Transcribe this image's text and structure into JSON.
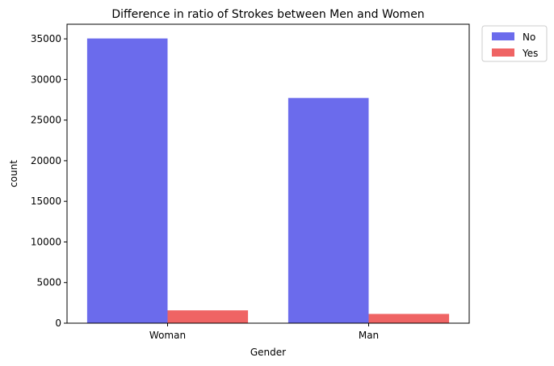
{
  "chart_data": {
    "type": "bar",
    "title": "Difference in ratio of Strokes between Men and Women",
    "xlabel": "Gender",
    "ylabel": "count",
    "categories": [
      "Woman",
      "Man"
    ],
    "series": [
      {
        "name": "No",
        "values": [
          35050,
          27720
        ]
      },
      {
        "name": "Yes",
        "values": [
          1580,
          1140
        ]
      }
    ],
    "ylim": [
      0,
      36800
    ],
    "yticks": [
      0,
      5000,
      10000,
      15000,
      20000,
      25000,
      30000,
      35000
    ],
    "ytick_labels": [
      "0",
      "5000",
      "10000",
      "15000",
      "20000",
      "25000",
      "30000",
      "35000"
    ],
    "colors": {
      "No": "#6b6bec",
      "Yes": "#ef6464"
    },
    "legend_placement": "outside top-right",
    "grid": false
  }
}
